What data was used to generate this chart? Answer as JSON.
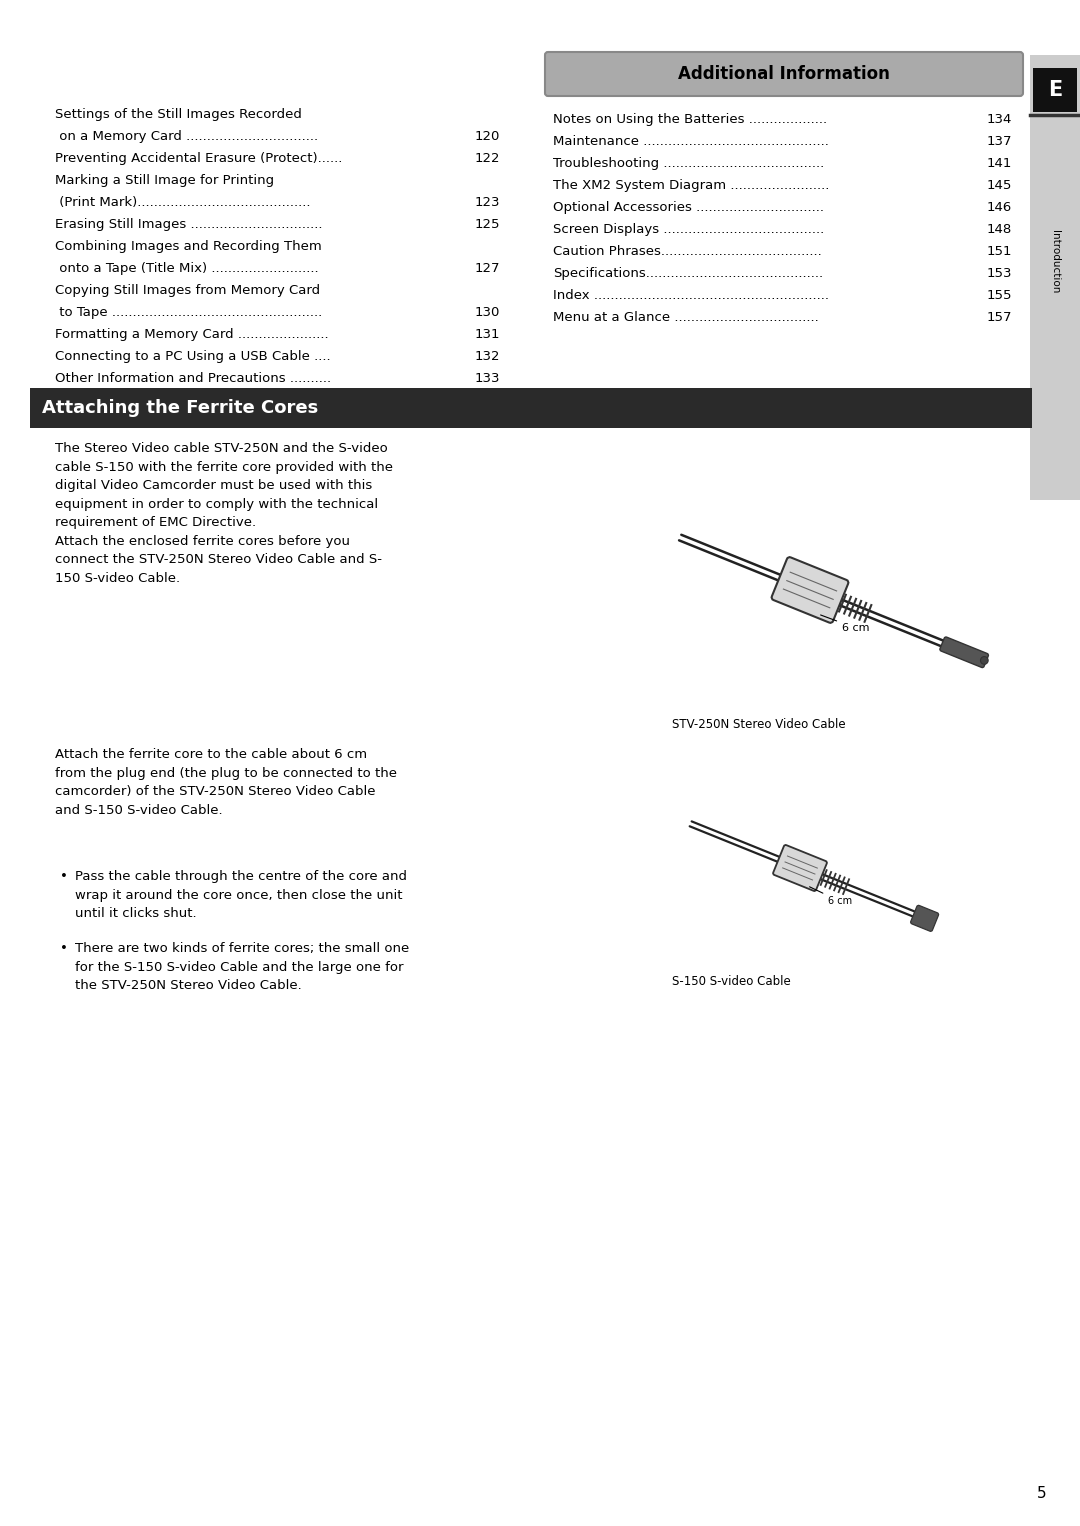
{
  "page_bg": "#ffffff",
  "page_number": "5",
  "right_tab_bg": "#cccccc",
  "right_tab_e_bg": "#111111",
  "right_tab_e_text": "E",
  "right_tab_label": "Introduction",
  "section_bar_color": "#2a2a2a",
  "section_bar_text": "Attaching the Ferrite Cores",
  "section_bar_text_color": "#ffffff",
  "additional_info_bg": "#aaaaaa",
  "additional_info_title": "Additional Information",
  "left_toc": [
    [
      "Settings of the Still Images Recorded",
      ""
    ],
    [
      " on a Memory Card ................................",
      "120"
    ],
    [
      "Preventing Accidental Erasure (Protect)......",
      "122"
    ],
    [
      "Marking a Still Image for Printing",
      ""
    ],
    [
      " (Print Mark)..........................................",
      "123"
    ],
    [
      "Erasing Still Images ................................",
      "125"
    ],
    [
      "Combining Images and Recording Them",
      ""
    ],
    [
      " onto a Tape (Title Mix) ..........................",
      "127"
    ],
    [
      "Copying Still Images from Memory Card",
      ""
    ],
    [
      " to Tape ...................................................",
      "130"
    ],
    [
      "Formatting a Memory Card ......................",
      "131"
    ],
    [
      "Connecting to a PC Using a USB Cable ....",
      "132"
    ],
    [
      "Other Information and Precautions ..........",
      "133"
    ]
  ],
  "right_toc": [
    [
      "Notes on Using the Batteries ...................",
      "134"
    ],
    [
      "Maintenance .............................................",
      "137"
    ],
    [
      "Troubleshooting .......................................",
      "141"
    ],
    [
      "The XM2 System Diagram ........................",
      "145"
    ],
    [
      "Optional Accessories ...............................",
      "146"
    ],
    [
      "Screen Displays .......................................",
      "148"
    ],
    [
      "Caution Phrases.......................................",
      "151"
    ],
    [
      "Specifications...........................................",
      "153"
    ],
    [
      "Index .........................................................",
      "155"
    ],
    [
      "Menu at a Glance ...................................",
      "157"
    ]
  ],
  "para1": "The Stereo Video cable STV-250N and the S-video\ncable S-150 with the ferrite core provided with the\ndigital Video Camcorder must be used with this\nequipment in order to comply with the technical\nrequirement of EMC Directive.\nAttach the enclosed ferrite cores before you\nconnect the STV-250N Stereo Video Cable and S-\n150 S-video Cable.",
  "para2": "Attach the ferrite core to the cable about 6 cm\nfrom the plug end (the plug to be connected to the\ncamcorder) of the STV-250N Stereo Video Cable\nand S-150 S-video Cable.",
  "bullet1": "Pass the cable through the centre of the core and\nwrap it around the core once, then close the unit\nuntil it clicks shut.",
  "bullet2": "There are two kinds of ferrite cores; the small one\nfor the S-150 S-video Cable and the large one for\nthe STV-250N Stereo Video Cable.",
  "cable_label_1": "STV-250N Stereo Video Cable",
  "cable_label_2": "S-150 S-video Cable",
  "text_color": "#000000",
  "font_size_body": 9.5,
  "font_size_toc": 9.5,
  "font_size_section": 13,
  "font_size_additional": 12
}
